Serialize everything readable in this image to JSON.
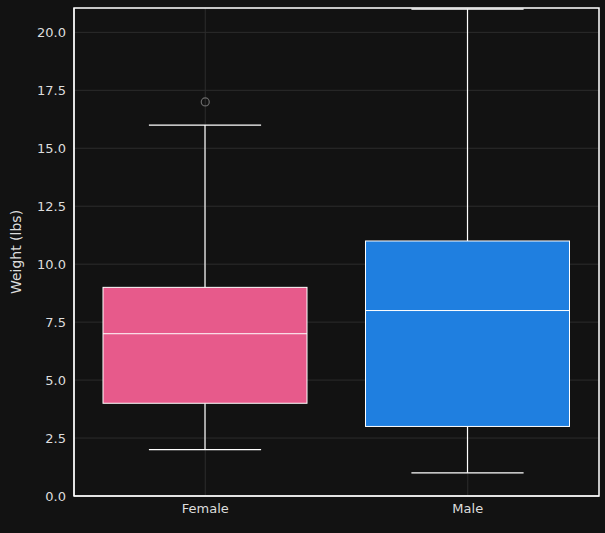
{
  "chart_data": {
    "type": "box",
    "y_label": "Weight (lbs)",
    "categories": [
      "Female",
      "Male"
    ],
    "boxes": [
      {
        "name": "Female",
        "color": "#e75a8b",
        "whislo": 2,
        "q1": 4,
        "med": 7,
        "q3": 9,
        "whishi": 16,
        "fliers": [
          17
        ]
      },
      {
        "name": "Male",
        "color": "#1f7fe0",
        "whislo": 1,
        "q1": 3,
        "med": 8,
        "q3": 11,
        "whishi": 21,
        "fliers": []
      }
    ],
    "ylim": [
      0,
      21.05
    ],
    "yticks": [
      {
        "value": 0,
        "label": "0.0"
      },
      {
        "value": 2.5,
        "label": "2.5"
      },
      {
        "value": 5,
        "label": "5.0"
      },
      {
        "value": 7.5,
        "label": "7.5"
      },
      {
        "value": 10,
        "label": "10.0"
      },
      {
        "value": 12.5,
        "label": "12.5"
      },
      {
        "value": 15,
        "label": "15.0"
      },
      {
        "value": 17.5,
        "label": "17.5"
      },
      {
        "value": 20,
        "label": "20.0"
      }
    ],
    "grid": true
  }
}
